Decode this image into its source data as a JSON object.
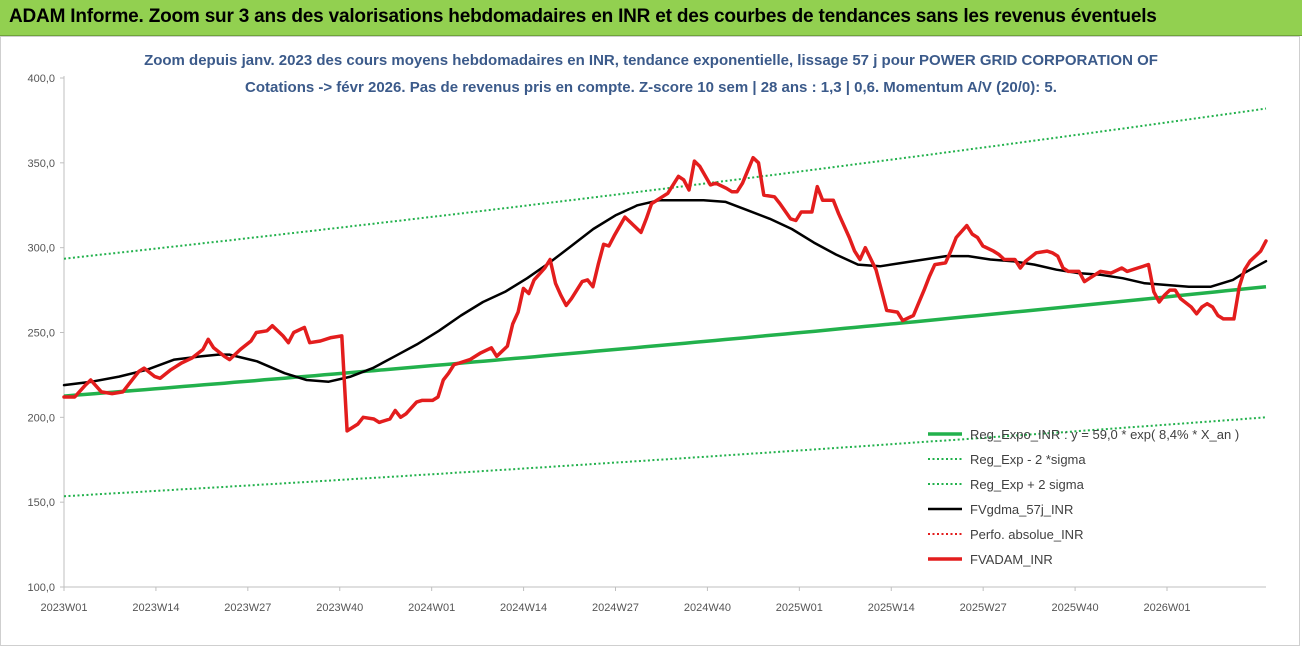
{
  "banner": {
    "title": "ADAM Informe. Zoom sur 3 ans des valorisations hebdomadaires en INR et des courbes de tendances sans les revenus éventuels"
  },
  "chart_data": {
    "type": "line",
    "title_line1": "Zoom depuis janv. 2023 des cours moyens hebdomadaires en INR, tendance exponentielle, lissage 57 j pour POWER GRID CORPORATION OF",
    "title_line2": "Cotations -> févr 2026.  Pas de revenus pris en compte. Z-score 10 sem | 28 ans : 1,3 | 0,6. Momentum A/V (20/0): 5.",
    "ylim": [
      100,
      400
    ],
    "yticks": [
      "100,0",
      "150,0",
      "200,0",
      "250,0",
      "300,0",
      "350,0",
      "400,0"
    ],
    "xticks": [
      "2023W01",
      "2023W14",
      "2023W27",
      "2023W40",
      "2024W01",
      "2024W14",
      "2024W27",
      "2024W40",
      "2025W01",
      "2025W14",
      "2025W27",
      "2025W40",
      "2026W01"
    ],
    "n_weeks": 170,
    "series": [
      {
        "name": "Reg_Expo_INR : y = 59,0 * exp( 8,4% *  X_an )",
        "color": "#22b14c",
        "style": "solid-thick",
        "start": 212.5,
        "end": 277.0
      },
      {
        "name": "Reg_Exp - 2 *sigma",
        "color": "#22b14c",
        "style": "dotted",
        "start": 153.5,
        "end": 200.0
      },
      {
        "name": "Reg_Exp + 2 sigma",
        "color": "#22b14c",
        "style": "dotted",
        "start": 293.5,
        "end": 382.0
      },
      {
        "name": "FVgdma_57j_INR",
        "color": "#000000",
        "style": "solid",
        "points": [
          [
            0,
            219
          ],
          [
            5,
            221
          ],
          [
            10,
            224
          ],
          [
            15,
            228
          ],
          [
            20,
            234
          ],
          [
            25,
            236
          ],
          [
            28,
            237
          ],
          [
            30,
            237
          ],
          [
            35,
            233
          ],
          [
            40,
            226
          ],
          [
            44,
            222
          ],
          [
            48,
            221
          ],
          [
            52,
            224
          ],
          [
            56,
            229
          ],
          [
            60,
            236
          ],
          [
            64,
            243
          ],
          [
            68,
            251
          ],
          [
            72,
            260
          ],
          [
            76,
            268
          ],
          [
            80,
            274
          ],
          [
            84,
            282
          ],
          [
            88,
            291
          ],
          [
            92,
            301
          ],
          [
            96,
            311
          ],
          [
            100,
            319
          ],
          [
            104,
            325
          ],
          [
            108,
            328
          ],
          [
            112,
            328
          ],
          [
            116,
            328
          ],
          [
            120,
            327
          ],
          [
            124,
            322
          ],
          [
            128,
            317
          ],
          [
            132,
            311
          ],
          [
            136,
            303
          ],
          [
            140,
            296
          ],
          [
            144,
            290
          ],
          [
            148,
            289
          ],
          [
            152,
            291
          ],
          [
            156,
            293
          ],
          [
            160,
            295
          ],
          [
            164,
            295
          ],
          [
            168,
            293
          ],
          [
            172,
            292
          ],
          [
            176,
            290
          ],
          [
            180,
            287
          ],
          [
            184,
            285
          ],
          [
            188,
            284
          ],
          [
            192,
            282
          ],
          [
            196,
            279
          ],
          [
            200,
            278
          ],
          [
            204,
            277
          ],
          [
            208,
            277
          ],
          [
            210,
            279
          ],
          [
            212,
            281
          ],
          [
            214,
            285
          ],
          [
            218,
            292
          ]
        ]
      },
      {
        "name": "Perfo. absolue_INR",
        "color": "#e31d1d",
        "style": "dotted",
        "points": []
      },
      {
        "name": "FVADAM_INR",
        "color": "#e31d1d",
        "style": "solid-thick",
        "points": [
          [
            0,
            212
          ],
          [
            2,
            212
          ],
          [
            4,
            219
          ],
          [
            5,
            222
          ],
          [
            7,
            215
          ],
          [
            9,
            214
          ],
          [
            11,
            215
          ],
          [
            13,
            223
          ],
          [
            14,
            227
          ],
          [
            15,
            229
          ],
          [
            17,
            224
          ],
          [
            18,
            223
          ],
          [
            20,
            228
          ],
          [
            22,
            232
          ],
          [
            24,
            235
          ],
          [
            26,
            240
          ],
          [
            27,
            246
          ],
          [
            28,
            241
          ],
          [
            30,
            236
          ],
          [
            31,
            234
          ],
          [
            33,
            240
          ],
          [
            35,
            245
          ],
          [
            36,
            250
          ],
          [
            38,
            251
          ],
          [
            39,
            254
          ],
          [
            41,
            248
          ],
          [
            42,
            244
          ],
          [
            43,
            250
          ],
          [
            45,
            253
          ],
          [
            46,
            244
          ],
          [
            48,
            245
          ],
          [
            50,
            247
          ],
          [
            52,
            248
          ],
          [
            53,
            192
          ],
          [
            55,
            196
          ],
          [
            56,
            200
          ],
          [
            58,
            199
          ],
          [
            59,
            197
          ],
          [
            61,
            199
          ],
          [
            62,
            204
          ],
          [
            63,
            200
          ],
          [
            64,
            202
          ],
          [
            66,
            209
          ],
          [
            67,
            210
          ],
          [
            69,
            210
          ],
          [
            70,
            212
          ],
          [
            71,
            222
          ],
          [
            72,
            226
          ],
          [
            73,
            231
          ],
          [
            74,
            232
          ],
          [
            76,
            234
          ],
          [
            78,
            238
          ],
          [
            80,
            241
          ],
          [
            81,
            236
          ],
          [
            83,
            242
          ],
          [
            84,
            255
          ],
          [
            85,
            262
          ],
          [
            86,
            276
          ],
          [
            87,
            273
          ],
          [
            88,
            281
          ],
          [
            90,
            288
          ],
          [
            91,
            293
          ],
          [
            92,
            279
          ],
          [
            93,
            272
          ],
          [
            94,
            266
          ],
          [
            95,
            270
          ],
          [
            97,
            280
          ],
          [
            98,
            281
          ],
          [
            99,
            277
          ],
          [
            100,
            290
          ],
          [
            101,
            302
          ],
          [
            102,
            301
          ],
          [
            103,
            307
          ],
          [
            105,
            318
          ],
          [
            106,
            315
          ],
          [
            108,
            309
          ],
          [
            109,
            317
          ],
          [
            110,
            326
          ],
          [
            112,
            330
          ],
          [
            113,
            332
          ],
          [
            115,
            342
          ],
          [
            116,
            340
          ],
          [
            117,
            334
          ],
          [
            118,
            351
          ],
          [
            119,
            348
          ],
          [
            121,
            337
          ],
          [
            122,
            338
          ],
          [
            124,
            335
          ],
          [
            125,
            333
          ],
          [
            126,
            333
          ],
          [
            127,
            338
          ],
          [
            129,
            353
          ],
          [
            130,
            350
          ],
          [
            131,
            331
          ],
          [
            133,
            330
          ],
          [
            134,
            326
          ],
          [
            136,
            317
          ],
          [
            137,
            316
          ],
          [
            138,
            321
          ],
          [
            140,
            321
          ],
          [
            141,
            336
          ],
          [
            142,
            328
          ],
          [
            144,
            328
          ],
          [
            145,
            320
          ],
          [
            147,
            306
          ],
          [
            148,
            298
          ],
          [
            149,
            293
          ],
          [
            150,
            300
          ],
          [
            152,
            287
          ],
          [
            153,
            275
          ],
          [
            154,
            263
          ],
          [
            156,
            262
          ],
          [
            157,
            257
          ],
          [
            159,
            260
          ],
          [
            161,
            275
          ],
          [
            162,
            283
          ],
          [
            163,
            290
          ],
          [
            165,
            291
          ],
          [
            166,
            298
          ],
          [
            167,
            306
          ],
          [
            169,
            313
          ],
          [
            170,
            308
          ],
          [
            171,
            306
          ],
          [
            172,
            301
          ],
          [
            174,
            298
          ],
          [
            175,
            296
          ],
          [
            176,
            293
          ],
          [
            178,
            293
          ],
          [
            179,
            288
          ],
          [
            180,
            292
          ],
          [
            182,
            297
          ],
          [
            184,
            298
          ],
          [
            185,
            297
          ],
          [
            186,
            295
          ],
          [
            187,
            288
          ],
          [
            188,
            286
          ],
          [
            190,
            286
          ],
          [
            191,
            280
          ],
          [
            192,
            282
          ],
          [
            194,
            286
          ],
          [
            196,
            285
          ],
          [
            198,
            288
          ],
          [
            199,
            286
          ],
          [
            201,
            288
          ],
          [
            203,
            290
          ],
          [
            204,
            274
          ],
          [
            205,
            268
          ],
          [
            206,
            272
          ],
          [
            207,
            275
          ],
          [
            208,
            275
          ],
          [
            209,
            270
          ],
          [
            211,
            265
          ],
          [
            212,
            261
          ],
          [
            213,
            265
          ],
          [
            214,
            267
          ],
          [
            215,
            265
          ],
          [
            216,
            260
          ],
          [
            217,
            258
          ],
          [
            219,
            258
          ],
          [
            220,
            277
          ],
          [
            221,
            287
          ],
          [
            222,
            292
          ],
          [
            224,
            298
          ],
          [
            225,
            304
          ]
        ]
      }
    ]
  }
}
